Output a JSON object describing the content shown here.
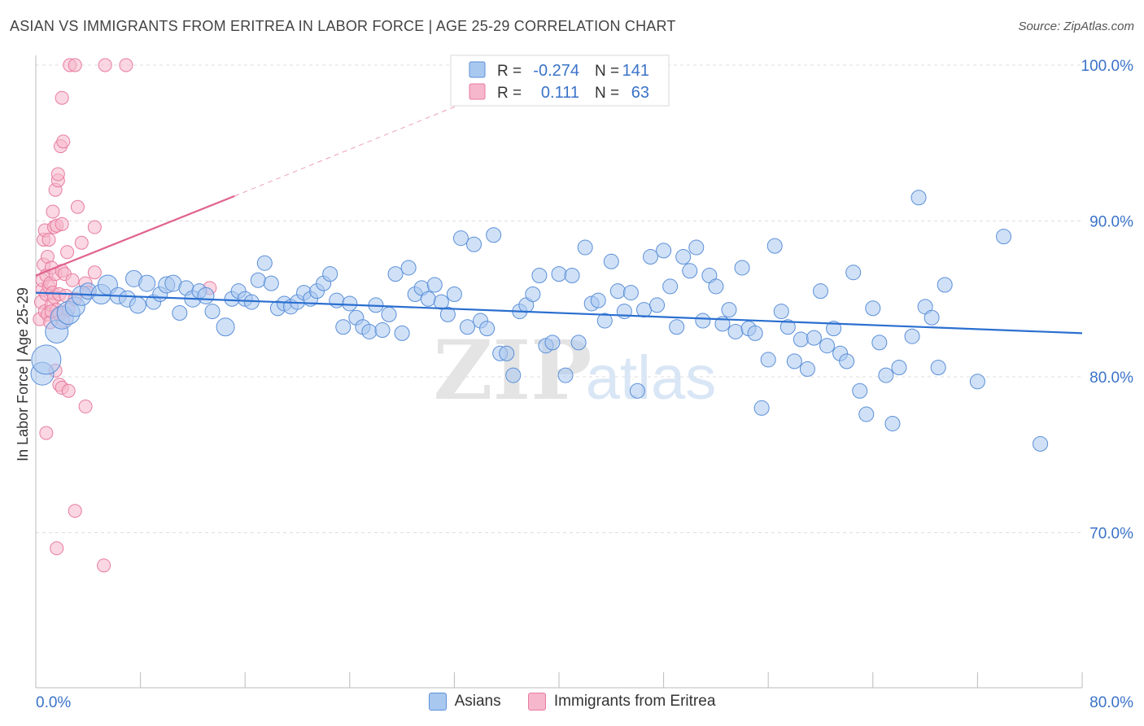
{
  "title": "ASIAN VS IMMIGRANTS FROM ERITREA IN LABOR FORCE | AGE 25-29 CORRELATION CHART",
  "source": "Source: ZipAtlas.com",
  "watermark": {
    "zip": "ZIP",
    "atlas": "atlas"
  },
  "colors": {
    "blue_fill": "#a9c8f0",
    "blue_stroke": "#5b8fd8",
    "blue_line": "#2b6fd0",
    "pink_fill": "#f6b6cb",
    "pink_stroke": "#e87ca0",
    "pink_line": "#e0628e",
    "axis_text": "#3a73c8",
    "grid": "#dddddd"
  },
  "legend_box": {
    "rows": [
      {
        "r_label": "R =",
        "r_value": "-0.274",
        "n_label": "N =",
        "n_value": "141"
      },
      {
        "r_label": "R =",
        "r_value": "0.111",
        "n_label": "N =",
        "n_value": "63"
      }
    ]
  },
  "chart_data": {
    "type": "scatter",
    "ylabel": "In Labor Force | Age 25-29",
    "xlim": [
      0,
      80
    ],
    "ylim": [
      60,
      102
    ],
    "x_tick_labels": [
      "0.0%",
      "80.0%"
    ],
    "y_ticks": [
      70,
      80,
      90,
      100
    ],
    "y_tick_labels": [
      "70.0%",
      "80.0%",
      "90.0%",
      "100.0%"
    ],
    "legend": [
      "Asians",
      "Immigrants from Eritrea"
    ],
    "series": [
      {
        "name": "Asians",
        "r": -0.274,
        "n": 141,
        "trend": {
          "x0": 0,
          "y0": 85.4,
          "x1": 80,
          "y1": 82.8
        },
        "points": [
          [
            0.5,
            80.2,
            14
          ],
          [
            0.8,
            81.1,
            18
          ],
          [
            1.6,
            82.9,
            14
          ],
          [
            2.0,
            83.8,
            14
          ],
          [
            2.5,
            84.1,
            14
          ],
          [
            3.0,
            84.5,
            12
          ],
          [
            3.5,
            85.2,
            12
          ],
          [
            4.0,
            85.5,
            10
          ],
          [
            5.0,
            85.3,
            12
          ],
          [
            5.5,
            85.9,
            12
          ],
          [
            6.3,
            85.2,
            10
          ],
          [
            7.0,
            85.0,
            10
          ],
          [
            7.5,
            86.3,
            10
          ],
          [
            7.8,
            84.6,
            10
          ],
          [
            8.5,
            86.0,
            10
          ],
          [
            9.0,
            84.8,
            9
          ],
          [
            9.5,
            85.3,
            9
          ],
          [
            10.0,
            85.9,
            10
          ],
          [
            10.5,
            86.0,
            10
          ],
          [
            11.0,
            84.1,
            9
          ],
          [
            11.5,
            85.7,
            9
          ],
          [
            12.0,
            85.0,
            10
          ],
          [
            12.5,
            85.5,
            9
          ],
          [
            13.0,
            85.2,
            10
          ],
          [
            13.5,
            84.2,
            9
          ],
          [
            14.5,
            83.2,
            11
          ],
          [
            15.0,
            85.0,
            9
          ],
          [
            15.5,
            85.5,
            9
          ],
          [
            16.0,
            85.0,
            9
          ],
          [
            16.5,
            84.8,
            9
          ],
          [
            17.0,
            86.2,
            9
          ],
          [
            17.5,
            87.3,
            9
          ],
          [
            18.0,
            86.0,
            9
          ],
          [
            18.5,
            84.4,
            9
          ],
          [
            19.0,
            84.7,
            9
          ],
          [
            19.5,
            84.5,
            9
          ],
          [
            20.0,
            84.8,
            9
          ],
          [
            20.5,
            85.4,
            9
          ],
          [
            21.0,
            85.0,
            9
          ],
          [
            21.5,
            85.5,
            9
          ],
          [
            22.0,
            86.0,
            9
          ],
          [
            22.5,
            86.6,
            9
          ],
          [
            23.0,
            84.9,
            9
          ],
          [
            23.5,
            83.2,
            9
          ],
          [
            24.0,
            84.7,
            9
          ],
          [
            24.5,
            83.8,
            9
          ],
          [
            25.0,
            83.2,
            9
          ],
          [
            25.5,
            82.9,
            9
          ],
          [
            26.0,
            84.6,
            9
          ],
          [
            26.5,
            83.0,
            9
          ],
          [
            27.0,
            84.0,
            9
          ],
          [
            27.5,
            86.6,
            9
          ],
          [
            28.0,
            82.8,
            9
          ],
          [
            28.5,
            87.0,
            9
          ],
          [
            29.0,
            85.3,
            9
          ],
          [
            29.5,
            85.7,
            9
          ],
          [
            30.0,
            85.0,
            9
          ],
          [
            30.5,
            85.9,
            9
          ],
          [
            31.0,
            84.8,
            9
          ],
          [
            31.5,
            84.0,
            9
          ],
          [
            32.0,
            85.3,
            9
          ],
          [
            32.5,
            88.9,
            9
          ],
          [
            33.0,
            83.2,
            9
          ],
          [
            33.5,
            88.5,
            9
          ],
          [
            34.0,
            83.6,
            9
          ],
          [
            34.5,
            83.1,
            9
          ],
          [
            35.0,
            89.1,
            9
          ],
          [
            35.5,
            81.5,
            9
          ],
          [
            36.0,
            81.5,
            9
          ],
          [
            36.5,
            80.1,
            9
          ],
          [
            37.0,
            84.2,
            9
          ],
          [
            37.5,
            84.6,
            9
          ],
          [
            38.0,
            85.3,
            9
          ],
          [
            38.5,
            86.5,
            9
          ],
          [
            39.0,
            82.0,
            9
          ],
          [
            39.5,
            82.2,
            9
          ],
          [
            40.0,
            86.6,
            9
          ],
          [
            40.5,
            80.1,
            9
          ],
          [
            41.0,
            86.5,
            9
          ],
          [
            41.5,
            82.2,
            9
          ],
          [
            42.0,
            88.3,
            9
          ],
          [
            42.5,
            84.7,
            9
          ],
          [
            43.0,
            84.9,
            9
          ],
          [
            43.5,
            83.6,
            9
          ],
          [
            44.0,
            87.4,
            9
          ],
          [
            44.5,
            85.5,
            9
          ],
          [
            45.0,
            84.2,
            9
          ],
          [
            45.5,
            85.4,
            9
          ],
          [
            46.0,
            79.1,
            9
          ],
          [
            46.5,
            84.3,
            9
          ],
          [
            47.0,
            87.7,
            9
          ],
          [
            47.5,
            84.6,
            9
          ],
          [
            48.0,
            88.1,
            9
          ],
          [
            48.5,
            85.8,
            9
          ],
          [
            49.0,
            83.2,
            9
          ],
          [
            49.5,
            87.7,
            9
          ],
          [
            50.0,
            86.8,
            9
          ],
          [
            50.5,
            88.3,
            9
          ],
          [
            51.0,
            83.6,
            9
          ],
          [
            51.5,
            86.5,
            9
          ],
          [
            52.0,
            85.8,
            9
          ],
          [
            52.5,
            83.4,
            9
          ],
          [
            53.0,
            84.3,
            9
          ],
          [
            53.5,
            82.9,
            9
          ],
          [
            54.0,
            87.0,
            9
          ],
          [
            54.5,
            83.1,
            9
          ],
          [
            55.0,
            82.8,
            9
          ],
          [
            55.5,
            78.0,
            9
          ],
          [
            56.0,
            81.1,
            9
          ],
          [
            56.5,
            88.4,
            9
          ],
          [
            57.0,
            84.2,
            9
          ],
          [
            57.5,
            83.2,
            9
          ],
          [
            58.0,
            81.0,
            9
          ],
          [
            58.5,
            82.4,
            9
          ],
          [
            59.0,
            80.5,
            9
          ],
          [
            59.5,
            82.5,
            9
          ],
          [
            60.0,
            85.5,
            9
          ],
          [
            60.5,
            82.0,
            9
          ],
          [
            61.0,
            83.1,
            9
          ],
          [
            61.5,
            81.5,
            9
          ],
          [
            62.0,
            81.0,
            9
          ],
          [
            62.5,
            86.7,
            9
          ],
          [
            63.0,
            79.1,
            9
          ],
          [
            63.5,
            77.6,
            9
          ],
          [
            64.0,
            84.4,
            9
          ],
          [
            64.5,
            82.2,
            9
          ],
          [
            65.0,
            80.1,
            9
          ],
          [
            65.5,
            77.0,
            9
          ],
          [
            66.0,
            80.6,
            9
          ],
          [
            67.0,
            82.6,
            9
          ],
          [
            67.5,
            91.5,
            9
          ],
          [
            68.0,
            84.5,
            9
          ],
          [
            68.5,
            83.8,
            9
          ],
          [
            69.0,
            80.6,
            9
          ],
          [
            69.5,
            85.9,
            9
          ],
          [
            72.0,
            79.7,
            9
          ],
          [
            74.0,
            89.0,
            9
          ],
          [
            76.8,
            75.7,
            9
          ]
        ]
      },
      {
        "name": "Immigrants from Eritrea",
        "r": 0.111,
        "n": 63,
        "trend": {
          "x0": 0,
          "y0": 86.5,
          "x1": 15.2,
          "y1": 91.6,
          "dash_to_x": 34,
          "dash_to_y": 98.0
        },
        "points": [
          [
            0.3,
            83.7,
            8
          ],
          [
            0.4,
            84.8,
            8
          ],
          [
            0.5,
            85.6,
            8
          ],
          [
            0.5,
            86.2,
            8
          ],
          [
            0.6,
            87.2,
            8
          ],
          [
            0.6,
            88.8,
            8
          ],
          [
            0.7,
            89.4,
            8
          ],
          [
            0.7,
            84.2,
            8
          ],
          [
            0.8,
            85.3,
            8
          ],
          [
            0.8,
            86.5,
            8
          ],
          [
            0.9,
            87.7,
            8
          ],
          [
            0.9,
            84.0,
            8
          ],
          [
            1.0,
            85.8,
            8
          ],
          [
            1.0,
            88.8,
            8
          ],
          [
            1.1,
            83.5,
            8
          ],
          [
            1.1,
            86.0,
            8
          ],
          [
            1.2,
            84.6,
            8
          ],
          [
            1.2,
            87.0,
            8
          ],
          [
            1.3,
            85.4,
            8
          ],
          [
            1.3,
            90.6,
            8
          ],
          [
            1.4,
            89.6,
            8
          ],
          [
            1.4,
            85.1,
            8
          ],
          [
            1.5,
            86.6,
            8
          ],
          [
            1.5,
            92.0,
            8
          ],
          [
            1.6,
            84.3,
            8
          ],
          [
            1.6,
            89.7,
            8
          ],
          [
            1.7,
            92.6,
            8
          ],
          [
            1.7,
            93.0,
            8
          ],
          [
            1.8,
            85.3,
            8
          ],
          [
            1.8,
            84.0,
            8
          ],
          [
            1.9,
            94.8,
            8
          ],
          [
            2.0,
            86.8,
            8
          ],
          [
            2.0,
            89.8,
            8
          ],
          [
            2.1,
            95.1,
            8
          ],
          [
            2.2,
            86.6,
            8
          ],
          [
            2.3,
            85.2,
            8
          ],
          [
            2.4,
            88.0,
            8
          ],
          [
            2.5,
            84.3,
            8
          ],
          [
            2.6,
            100.0,
            8
          ],
          [
            2.8,
            86.2,
            8
          ],
          [
            3.0,
            100.0,
            8
          ],
          [
            3.0,
            85.0,
            8
          ],
          [
            3.2,
            90.9,
            8
          ],
          [
            3.5,
            88.6,
            8
          ],
          [
            3.8,
            86.0,
            8
          ],
          [
            4.0,
            85.4,
            8
          ],
          [
            4.5,
            89.6,
            8
          ],
          [
            5.3,
            100.0,
            8
          ],
          [
            6.9,
            100.0,
            8
          ],
          [
            2.0,
            97.9,
            8
          ],
          [
            0.8,
            76.4,
            8
          ],
          [
            1.5,
            80.4,
            8
          ],
          [
            1.8,
            79.5,
            8
          ],
          [
            2.0,
            79.3,
            8
          ],
          [
            2.5,
            79.1,
            8
          ],
          [
            3.0,
            71.4,
            8
          ],
          [
            1.6,
            69.0,
            8
          ],
          [
            5.2,
            67.9,
            8
          ],
          [
            3.8,
            78.1,
            8
          ],
          [
            4.5,
            86.7,
            8
          ],
          [
            13.3,
            85.7,
            8
          ],
          [
            2.1,
            83.6,
            8
          ],
          [
            1.2,
            84.2,
            8
          ]
        ]
      }
    ]
  }
}
